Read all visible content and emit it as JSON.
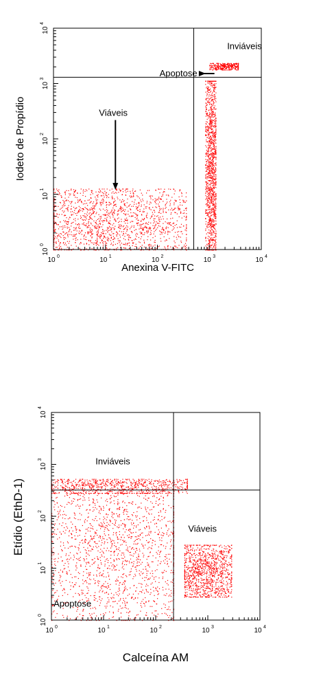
{
  "chart_data": [
    {
      "type": "scatter",
      "xlabel": "Anexina  V-FITC",
      "ylabel": "Iodeto de Propídio",
      "xscale": "log",
      "yscale": "log",
      "xlim": [
        1,
        10000
      ],
      "ylim": [
        1,
        10000
      ],
      "x_tick_base": "10",
      "x_tick_exponents": [
        "0",
        "1",
        "2",
        "3",
        "4"
      ],
      "y_tick_base": "10",
      "y_tick_exponents": [
        "0",
        "1",
        "2",
        "3",
        "4"
      ],
      "gates": {
        "x": 500,
        "y": 1300
      },
      "annotations": [
        {
          "text": "Inviáveis",
          "x": 2200,
          "y": 4200
        },
        {
          "text": "Apoptose",
          "x": 110,
          "y": 1350,
          "arrow_to": [
            850,
            1350
          ]
        },
        {
          "text": "Viáveis",
          "x": 7.5,
          "y": 260,
          "arrow_to": [
            7.5,
            12
          ]
        }
      ],
      "series": [
        {
          "label": "viable",
          "color": "#ff0000",
          "count": 1600,
          "x_log_range": [
            0,
            2.55
          ],
          "y_log_range": [
            0,
            1.1
          ],
          "center": [
            10,
            3
          ]
        },
        {
          "label": "apoptotic",
          "color": "#ff0000",
          "count": 1300,
          "x_log_range": [
            2.92,
            3.12
          ],
          "y_log_range": [
            0,
            3.05
          ],
          "center": [
            1100,
            30
          ]
        },
        {
          "label": "non-viable",
          "color": "#ff0000",
          "count": 300,
          "x_log_range": [
            3.0,
            3.55
          ],
          "y_log_range": [
            3.25,
            3.37
          ],
          "center": [
            2200,
            2100
          ]
        }
      ]
    },
    {
      "type": "scatter",
      "xlabel": "Calceína AM",
      "ylabel": "Etídio (EthD-1)",
      "xscale": "log",
      "yscale": "log",
      "xlim": [
        1,
        10000
      ],
      "ylim": [
        1,
        10000
      ],
      "x_tick_base": "10",
      "x_tick_exponents": [
        "0",
        "1",
        "2",
        "3",
        "4"
      ],
      "y_tick_base": "10",
      "y_tick_exponents": [
        "0",
        "1",
        "2",
        "3",
        "4"
      ],
      "gates": {
        "x": 220,
        "y": 320
      },
      "annotations": [
        {
          "text": "Inviáveis",
          "x": 7,
          "y": 1000
        },
        {
          "text": "Viáveis",
          "x": 420,
          "y": 50
        },
        {
          "text": "Apoptose",
          "x": 1.1,
          "y": 1.8
        }
      ],
      "series": [
        {
          "label": "non-viable",
          "color": "#ff0000",
          "count": 700,
          "x_log_range": [
            0,
            2.6
          ],
          "y_log_range": [
            2.45,
            2.72
          ],
          "center": [
            20,
            400
          ]
        },
        {
          "label": "apoptotic",
          "color": "#ff0000",
          "count": 1700,
          "x_log_range": [
            0,
            2.34
          ],
          "y_log_range": [
            0,
            2.45
          ],
          "center": [
            20,
            30
          ]
        },
        {
          "label": "viable",
          "color": "#ff0000",
          "count": 1100,
          "x_log_range": [
            2.55,
            3.45
          ],
          "y_log_range": [
            0.45,
            1.45
          ],
          "center": [
            900,
            8
          ]
        }
      ]
    }
  ]
}
